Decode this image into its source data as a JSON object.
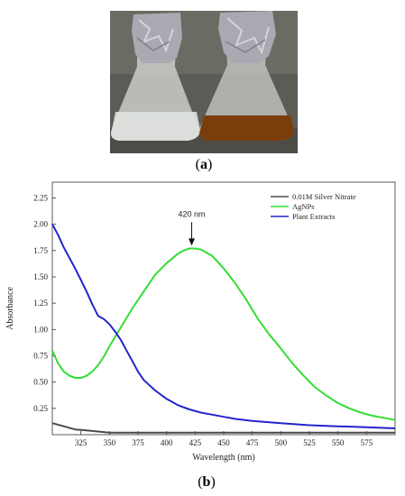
{
  "panel_a": {
    "label_open": "(",
    "label_letter": "a",
    "label_close": ")"
  },
  "panel_b": {
    "label_open": "(",
    "label_letter": "b",
    "label_close": ")"
  },
  "colors": {
    "photo_bg": "#595851",
    "foil": "#a9a9b1",
    "glass": "#c9ccc8",
    "liquid_clear": "#d9dcd8",
    "liquid_brown": "#7a3e0d",
    "table": "#6e6c66"
  },
  "chart_data": {
    "type": "line",
    "xlabel": "Wavelength (nm)",
    "ylabel": "Absorbance",
    "xlim": [
      300,
      600
    ],
    "ylim": [
      0,
      2.4
    ],
    "x_ticks": [
      325,
      350,
      375,
      400,
      425,
      450,
      475,
      500,
      525,
      550,
      575
    ],
    "x_tick_labels": [
      "325",
      "350",
      "375",
      "400",
      "425",
      "450",
      "475",
      "500",
      "525",
      "550",
      "575"
    ],
    "y_ticks": [
      0.25,
      0.5,
      0.75,
      1.0,
      1.25,
      1.5,
      1.75,
      2.0,
      2.25
    ],
    "y_tick_labels": [
      "0.25",
      "0.50",
      "0.75",
      "1.00",
      "1.25",
      "1.50",
      "1.75",
      "2.00",
      "2.25"
    ],
    "grid": false,
    "legend_position": "top-right",
    "annotation": {
      "text": "420 nm",
      "x": 422,
      "y": 1.78
    },
    "series": [
      {
        "name": "0.01M Silver Nitrate",
        "color": "#4a4a4a",
        "x": [
          300,
          310,
          320,
          330,
          340,
          350,
          375,
          400,
          425,
          450,
          500,
          550,
          600
        ],
        "y": [
          0.11,
          0.08,
          0.05,
          0.04,
          0.03,
          0.02,
          0.02,
          0.02,
          0.02,
          0.02,
          0.02,
          0.02,
          0.02
        ]
      },
      {
        "name": "AgNPs",
        "color": "#33dd33",
        "x": [
          300,
          305,
          310,
          315,
          320,
          325,
          330,
          335,
          340,
          345,
          350,
          360,
          370,
          380,
          390,
          400,
          410,
          415,
          420,
          425,
          430,
          440,
          450,
          460,
          470,
          480,
          490,
          500,
          510,
          520,
          530,
          540,
          550,
          560,
          570,
          580,
          590,
          600
        ],
        "y": [
          0.8,
          0.68,
          0.6,
          0.56,
          0.54,
          0.54,
          0.56,
          0.6,
          0.66,
          0.74,
          0.84,
          1.02,
          1.2,
          1.36,
          1.52,
          1.63,
          1.72,
          1.75,
          1.77,
          1.77,
          1.76,
          1.7,
          1.58,
          1.44,
          1.28,
          1.1,
          0.95,
          0.82,
          0.68,
          0.56,
          0.45,
          0.37,
          0.3,
          0.25,
          0.21,
          0.18,
          0.16,
          0.14
        ]
      },
      {
        "name": "Plant Extracts",
        "color": "#2424cc",
        "x": [
          300,
          305,
          310,
          315,
          320,
          325,
          330,
          335,
          340,
          345,
          350,
          355,
          360,
          365,
          370,
          375,
          380,
          390,
          400,
          410,
          420,
          430,
          440,
          450,
          460,
          475,
          500,
          525,
          550,
          575,
          600
        ],
        "y": [
          2.0,
          1.9,
          1.78,
          1.68,
          1.58,
          1.47,
          1.36,
          1.24,
          1.13,
          1.1,
          1.05,
          0.98,
          0.9,
          0.8,
          0.7,
          0.6,
          0.52,
          0.42,
          0.34,
          0.28,
          0.24,
          0.21,
          0.19,
          0.17,
          0.15,
          0.13,
          0.11,
          0.09,
          0.08,
          0.07,
          0.06
        ]
      }
    ]
  }
}
